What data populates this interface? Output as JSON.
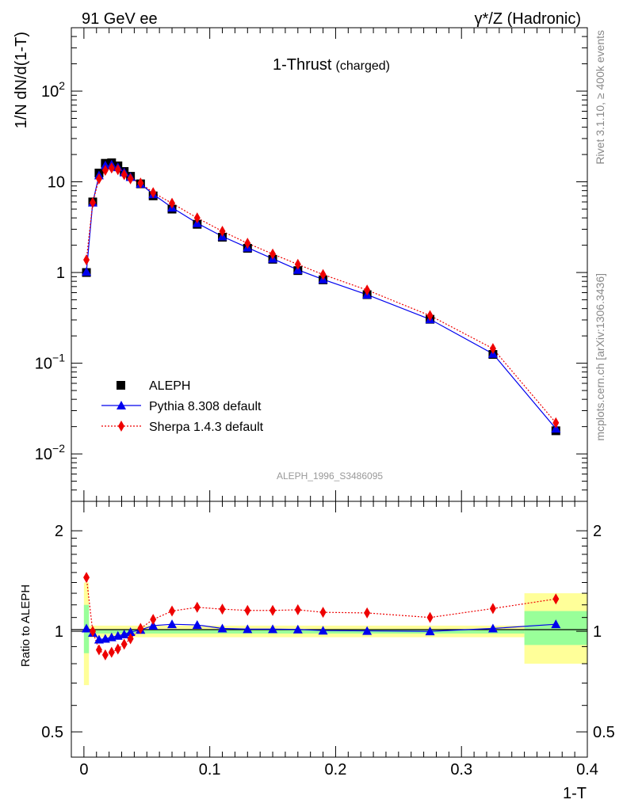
{
  "header": {
    "left": "91 GeV ee",
    "right": "γ*/Z (Hadronic)"
  },
  "side": {
    "top": "Rivet 3.1.10, ≥ 400k events",
    "bottom": "mcplots.cern.ch [arXiv:1306.3436]"
  },
  "chart_data": [
    {
      "type": "line",
      "title": "1-Thrust",
      "subtitle": "(charged)",
      "ylabel": "1/N dN/d(1-T)",
      "yscale": "log",
      "ylim": [
        0.003,
        500
      ],
      "xlim": [
        -0.01,
        0.4
      ],
      "watermark": "ALEPH_1996_S3486095",
      "legend_position": "lower-left",
      "yticks": [
        {
          "value": 0.01,
          "base": "10",
          "exp": "−2"
        },
        {
          "value": 0.1,
          "base": "10",
          "exp": "−1"
        },
        {
          "value": 1,
          "base": "1",
          "exp": ""
        },
        {
          "value": 10,
          "base": "10",
          "exp": ""
        },
        {
          "value": 100,
          "base": "10",
          "exp": "2"
        }
      ],
      "x": [
        0.002,
        0.007,
        0.012,
        0.017,
        0.022,
        0.027,
        0.032,
        0.037,
        0.045,
        0.055,
        0.07,
        0.09,
        0.11,
        0.13,
        0.15,
        0.17,
        0.19,
        0.225,
        0.275,
        0.325,
        0.375
      ],
      "series": [
        {
          "name": "ALEPH",
          "style": "square",
          "color": "#000000",
          "values": [
            1.0,
            6.0,
            12.5,
            16.0,
            16.2,
            15.0,
            13.0,
            11.5,
            9.5,
            7.0,
            5.0,
            3.4,
            2.45,
            1.85,
            1.4,
            1.05,
            0.83,
            0.57,
            0.305,
            0.125,
            0.018
          ]
        },
        {
          "name": "Pythia 8.308 default",
          "style": "triangle-solid",
          "color": "#0000ee",
          "values": [
            1.02,
            5.9,
            11.8,
            15.2,
            15.5,
            14.5,
            12.7,
            11.3,
            9.5,
            7.3,
            5.2,
            3.5,
            2.5,
            1.88,
            1.42,
            1.07,
            0.84,
            0.57,
            0.305,
            0.127,
            0.019
          ]
        },
        {
          "name": "Sherpa 1.4.3 default",
          "style": "diamond-dotted",
          "color": "#ee0000",
          "values": [
            1.38,
            5.9,
            10.8,
            13.4,
            14.2,
            13.6,
            12.0,
            10.8,
            9.7,
            7.6,
            5.8,
            4.0,
            2.85,
            2.1,
            1.6,
            1.23,
            0.95,
            0.64,
            0.335,
            0.145,
            0.022
          ]
        }
      ]
    },
    {
      "type": "line",
      "ylabel": "Ratio to ALEPH",
      "xlabel": "1-T",
      "yscale": "log",
      "ylim": [
        0.42,
        2.45
      ],
      "xlim": [
        -0.01,
        0.4
      ],
      "yticks": [
        0.5,
        1,
        2
      ],
      "xticks": [
        0,
        0.1,
        0.2,
        0.3,
        0.4
      ],
      "bands": [
        {
          "x0": 0.0,
          "x1": 0.004,
          "stat": [
            0.86,
            1.2
          ],
          "total": [
            0.69,
            1.4
          ]
        },
        {
          "x0": 0.004,
          "x1": 0.35,
          "stat": [
            0.985,
            1.015
          ],
          "total": [
            0.96,
            1.04
          ]
        },
        {
          "x0": 0.35,
          "x1": 0.4,
          "stat": [
            0.91,
            1.15
          ],
          "total": [
            0.8,
            1.3
          ]
        }
      ],
      "band_colors": {
        "stat": "#99ff99",
        "total": "#ffff99"
      },
      "x": [
        0.002,
        0.007,
        0.012,
        0.017,
        0.022,
        0.027,
        0.032,
        0.037,
        0.045,
        0.055,
        0.07,
        0.09,
        0.11,
        0.13,
        0.15,
        0.17,
        0.19,
        0.225,
        0.275,
        0.325,
        0.375
      ],
      "series": [
        {
          "name": "Pythia 8.308 default",
          "color": "#0000ee",
          "style": "triangle-solid",
          "values": [
            1.02,
            0.99,
            0.945,
            0.95,
            0.96,
            0.97,
            0.98,
            0.995,
            1.01,
            1.04,
            1.05,
            1.045,
            1.02,
            1.015,
            1.015,
            1.013,
            1.005,
            1.003,
            1.0,
            1.02,
            1.05
          ]
        },
        {
          "name": "Sherpa 1.4.3 default",
          "color": "#ee0000",
          "style": "diamond-dotted",
          "values": [
            1.45,
            1.0,
            0.88,
            0.85,
            0.865,
            0.885,
            0.915,
            0.95,
            1.02,
            1.085,
            1.15,
            1.18,
            1.165,
            1.155,
            1.155,
            1.16,
            1.14,
            1.135,
            1.1,
            1.17,
            1.25
          ]
        }
      ]
    }
  ]
}
